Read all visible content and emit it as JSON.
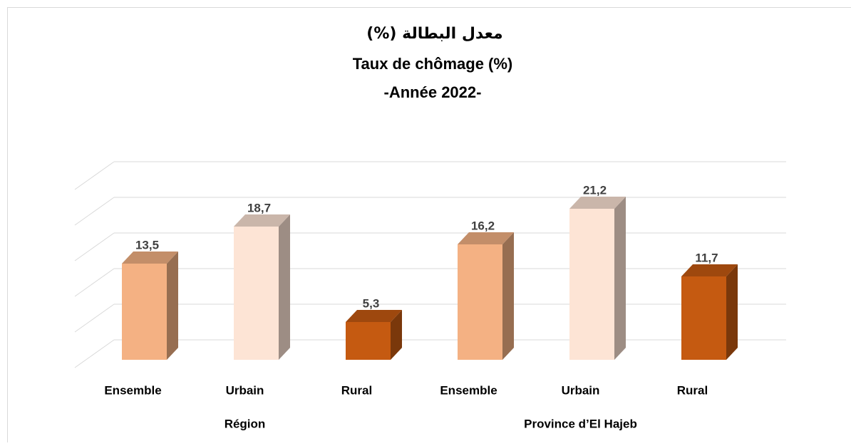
{
  "chart_data": {
    "type": "bar3d",
    "title": "معدل البطالة  (%)",
    "subtitle": "Taux de chômage (%)",
    "subtitle2": "-Année 2022-",
    "categories": [
      "Ensemble",
      "Urbain",
      "Rural",
      "Ensemble",
      "Urbain",
      "Rural"
    ],
    "group_labels": [
      "Région",
      "Province d’El Hajeb"
    ],
    "values": [
      13.5,
      18.7,
      5.3,
      16.2,
      21.2,
      11.7
    ],
    "value_labels": [
      "13,5",
      "18,7",
      "5,3",
      "16,2",
      "21,2",
      "11,7"
    ],
    "colors": [
      "#F4B183",
      "#FDE4D5",
      "#C55A11",
      "#F4B183",
      "#FDE4D5",
      "#C55A11"
    ],
    "ylim": [
      0,
      25
    ],
    "yticks": [
      0,
      5,
      10,
      15,
      20,
      25
    ],
    "grid": true
  }
}
